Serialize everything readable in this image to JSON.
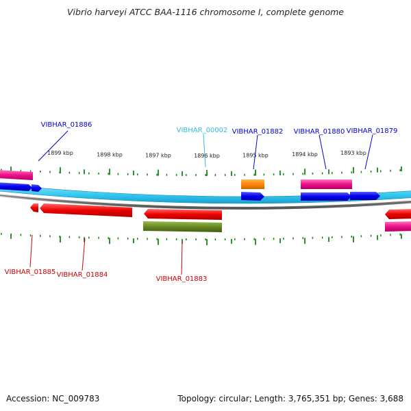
{
  "title": "Vibrio harveyi ATCC BAA-1116 chromosome I, complete genome",
  "footer": {
    "accession": "Accession: NC_009783",
    "summary": "Topology: circular; Length: 3,765,351 bp; Genes: 3,688"
  },
  "colors": {
    "forward_gene": "#0000ee",
    "forward_track": "#44ccee",
    "reverse_gene": "#ee0000",
    "rna_gene": "#ee1188",
    "trna_gene": "#ff8800",
    "other_gene": "#668822",
    "backbone": "#888888",
    "tick": "#118811",
    "label_blue": "#0000cc",
    "label_cyan": "#33bbdd",
    "label_red": "#cc0000"
  },
  "ticks": [
    {
      "label": "1899 kbp"
    },
    {
      "label": "1898 kbp"
    },
    {
      "label": "1897 kbp"
    },
    {
      "label": "1896 kbp"
    },
    {
      "label": "1895 kbp"
    },
    {
      "label": "1894 kbp"
    },
    {
      "label": "1893 kbp"
    }
  ],
  "gene_labels": {
    "top": [
      {
        "label": "VIBHAR_01886"
      },
      {
        "label": "VIBHAR_00002"
      },
      {
        "label": "VIBHAR_01882"
      },
      {
        "label": "VIBHAR_01880"
      },
      {
        "label": "VIBHAR_01879"
      }
    ],
    "bottom": [
      {
        "label": "VIBHAR_01885"
      },
      {
        "label": "VIBHAR_01884"
      },
      {
        "label": "VIBHAR_01883"
      }
    ]
  }
}
